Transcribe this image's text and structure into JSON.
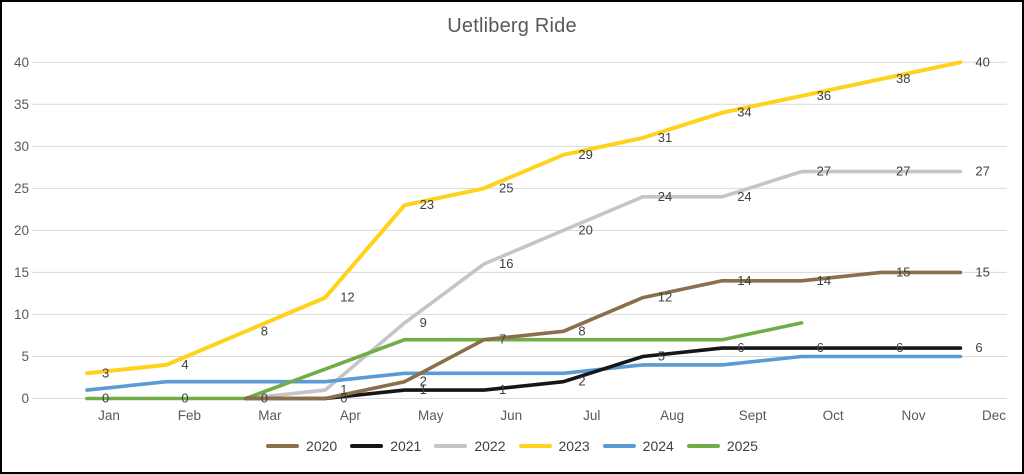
{
  "title": "Uetliberg Ride",
  "chart_data": {
    "type": "line",
    "title": "Uetliberg Ride",
    "categories": [
      "Jan",
      "Feb",
      "Mar",
      "Apr",
      "May",
      "Jun",
      "Jul",
      "Aug",
      "Sept",
      "Oct",
      "Nov",
      "Dec"
    ],
    "y_axis": {
      "min": 0,
      "max": 40,
      "step": 5
    },
    "grid": true,
    "legend_position": "bottom",
    "colors": {
      "gridline": "#d9d9d9",
      "axis_text": "#595959",
      "data_label_text": "#404040"
    },
    "series": [
      {
        "name": "2020",
        "color": "#8a6f4a",
        "values": [
          null,
          null,
          0,
          0,
          2,
          7,
          8,
          12,
          14,
          14,
          15,
          15
        ],
        "labels": [
          null,
          null,
          null,
          null,
          "2",
          "7",
          "8",
          "12",
          "14",
          "14",
          "15",
          "15"
        ]
      },
      {
        "name": "2021",
        "color": "#161616",
        "values": [
          null,
          null,
          0,
          0,
          1,
          1,
          2,
          5,
          6,
          6,
          6,
          6
        ],
        "labels": [
          null,
          null,
          null,
          "0",
          "1",
          "1",
          "2",
          "5",
          "6",
          "6",
          "6",
          "6"
        ]
      },
      {
        "name": "2022",
        "color": "#c5c5c5",
        "values": [
          null,
          null,
          0,
          1,
          9,
          16,
          20,
          24,
          24,
          27,
          27,
          27
        ],
        "labels": [
          null,
          null,
          null,
          "1",
          "9",
          "16",
          "20",
          "24",
          "24",
          "27",
          "27",
          "27"
        ]
      },
      {
        "name": "2023",
        "color": "#ffd21e",
        "values": [
          3,
          4,
          8,
          12,
          23,
          25,
          29,
          31,
          34,
          36,
          38,
          40
        ],
        "labels": [
          "3",
          "4",
          "8",
          "12",
          "23",
          "25",
          "29",
          "31",
          "34",
          "36",
          "38",
          "40"
        ]
      },
      {
        "name": "2024",
        "color": "#5b9bd5",
        "values": [
          1,
          2,
          2,
          2,
          3,
          3,
          3,
          4,
          4,
          5,
          5,
          5
        ],
        "labels": [
          null,
          null,
          null,
          null,
          null,
          null,
          null,
          null,
          null,
          null,
          null,
          null
        ]
      },
      {
        "name": "2025",
        "color": "#70ad47",
        "values": [
          0,
          0,
          0,
          null,
          7,
          7,
          7,
          7,
          7,
          9,
          null,
          null
        ],
        "labels": [
          "0",
          "0",
          "0",
          null,
          null,
          null,
          null,
          null,
          null,
          null,
          null,
          null
        ]
      }
    ]
  }
}
